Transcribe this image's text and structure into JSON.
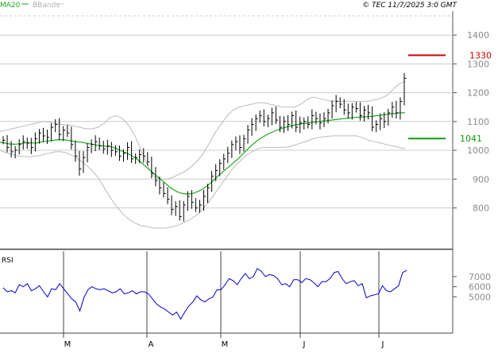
{
  "header": {
    "ma_label": "MA20",
    "bbands_label": "BBands",
    "copyright": "© TEC 11/7/2025 3:0 GMT"
  },
  "colors": {
    "ma": "#1faa1f",
    "bbands": "#bbbbbb",
    "bars": "#000000",
    "rsi": "#0000cc",
    "resistance": "#cc0000",
    "support": "#109910",
    "grid": "#cccccc",
    "axis": "#888888"
  },
  "chart_data": [
    {
      "type": "ohlc",
      "x_ticks": [
        "M",
        "A",
        "M",
        "J",
        "J"
      ],
      "y_ticks": [
        800,
        900,
        1000,
        1100,
        1200,
        1300,
        1400
      ],
      "ylim": [
        658,
        1483
      ],
      "grid": true,
      "levels": [
        {
          "name": "resistance",
          "value": 1330,
          "label": "1330"
        },
        {
          "name": "support",
          "value": 1041,
          "label": "1041"
        }
      ],
      "close": [
        1035,
        1010,
        995,
        1000,
        1020,
        1030,
        1025,
        1010,
        1040,
        1060,
        1050,
        1045,
        1080,
        1090,
        1055,
        1070,
        1060,
        1020,
        980,
        935,
        975,
        1010,
        1020,
        1030,
        1015,
        1005,
        1015,
        1000,
        995,
        980,
        990,
        1010,
        970,
        975,
        985,
        980,
        960,
        920,
        895,
        870,
        850,
        830,
        795,
        805,
        770,
        810,
        840,
        820,
        800,
        810,
        840,
        870,
        910,
        930,
        955,
        970,
        990,
        1020,
        1030,
        1010,
        1040,
        1070,
        1090,
        1110,
        1120,
        1100,
        1110,
        1130,
        1105,
        1080,
        1100,
        1090,
        1120,
        1080,
        1095,
        1100,
        1090,
        1120,
        1110,
        1095,
        1110,
        1130,
        1155,
        1170,
        1160,
        1140,
        1130,
        1150,
        1145,
        1120,
        1140,
        1130,
        1080,
        1090,
        1110,
        1100,
        1130,
        1150,
        1130,
        1170,
        1250
      ],
      "series": [
        {
          "name": "MA20",
          "values": [
            1028,
            1025,
            1022,
            1021,
            1023,
            1026,
            1026,
            1025,
            1028,
            1031,
            1033,
            1036,
            1037,
            1036,
            1033,
            1030,
            1028,
            1025,
            1022,
            1018,
            1016,
            1014,
            1012,
            1006,
            998,
            990,
            982,
            970,
            956,
            940,
            925,
            910,
            895,
            880,
            866,
            856,
            850,
            848,
            850,
            856,
            865,
            878,
            893,
            910,
            925,
            940,
            955,
            970,
            988,
            1006,
            1022,
            1036,
            1047,
            1057,
            1065,
            1072,
            1078,
            1083,
            1087,
            1090,
            1093,
            1095,
            1098,
            1100,
            1102,
            1104,
            1106,
            1108,
            1110,
            1112,
            1114,
            1115,
            1116,
            1117,
            1119,
            1121,
            1124,
            1126,
            1128,
            1130,
            1130
          ]
        },
        {
          "name": "BBands upper",
          "values": [
            1065,
            1070,
            1075,
            1080,
            1085,
            1090,
            1095,
            1100,
            1098,
            1093,
            1090,
            1088,
            1085,
            1080,
            1075,
            1075,
            1080,
            1095,
            1115,
            1120,
            1110,
            1085,
            1050,
            1000,
            950,
            910,
            900,
            900,
            905,
            915,
            925,
            940,
            960,
            985,
            1020,
            1060,
            1090,
            1120,
            1140,
            1150,
            1155,
            1160,
            1165,
            1165,
            1160,
            1155,
            1150,
            1150,
            1150,
            1160,
            1175,
            1185,
            1180,
            1175,
            1170,
            1170,
            1170,
            1170,
            1170,
            1170,
            1170,
            1175,
            1180,
            1190,
            1210,
            1230,
            1240
          ]
        },
        {
          "name": "BBands lower",
          "values": [
            1000,
            992,
            986,
            980,
            978,
            978,
            980,
            985,
            990,
            995,
            995,
            990,
            980,
            965,
            950,
            930,
            905,
            870,
            835,
            805,
            780,
            760,
            748,
            738,
            735,
            730,
            730,
            730,
            735,
            740,
            750,
            760,
            775,
            795,
            820,
            850,
            880,
            910,
            940,
            960,
            980,
            995,
            1005,
            1010,
            1010,
            1010,
            1010,
            1012,
            1018,
            1025,
            1032,
            1040,
            1045,
            1048,
            1050,
            1050,
            1050,
            1050,
            1050,
            1045,
            1035,
            1030,
            1025,
            1020,
            1015,
            1010,
            1005
          ]
        }
      ]
    },
    {
      "type": "line",
      "title": "RSI",
      "y_ticks": [
        5000,
        6000,
        7000
      ],
      "ylim": [
        1500,
        9500
      ],
      "series": [
        {
          "name": "RSI",
          "values": [
            5900,
            5500,
            5600,
            5400,
            6200,
            6000,
            6300,
            5600,
            5800,
            6100,
            5500,
            5000,
            5800,
            5700,
            6300,
            5800,
            5300,
            4800,
            4500,
            3600,
            4900,
            5700,
            6000,
            5800,
            5700,
            5800,
            5600,
            5400,
            5500,
            5800,
            5300,
            5400,
            5600,
            5300,
            5500,
            5500,
            5300,
            4800,
            4300,
            4000,
            3800,
            3500,
            3200,
            3500,
            2800,
            3500,
            4100,
            4500,
            5100,
            4700,
            4500,
            4800,
            5000,
            5700,
            5700,
            6200,
            6800,
            6600,
            6200,
            6800,
            7300,
            6800,
            7000,
            7800,
            7500,
            7000,
            7200,
            7100,
            6800,
            6200,
            6300,
            6000,
            6700,
            6700,
            6400,
            6800,
            6700,
            6400,
            6000,
            6500,
            6500,
            6800,
            7400,
            7500,
            6800,
            6300,
            6500,
            6600,
            6100,
            6300,
            4900,
            5100,
            5200,
            5300,
            6100,
            5600,
            5500,
            5800,
            6100,
            7400,
            7600
          ]
        }
      ]
    }
  ]
}
